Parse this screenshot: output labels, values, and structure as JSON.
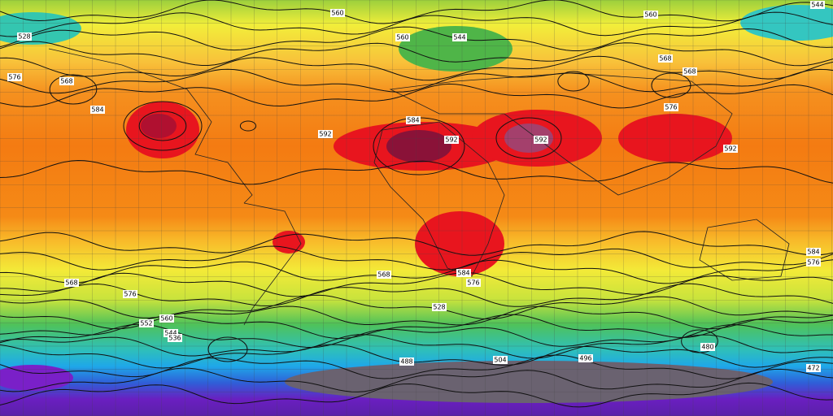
{
  "contour_labels": [
    "544",
    "560",
    "560",
    "528",
    "560",
    "544",
    "568",
    "568",
    "576",
    "568",
    "584",
    "592",
    "584",
    "592",
    "592",
    "576",
    "592",
    "584",
    "576",
    "584",
    "576",
    "568",
    "576",
    "568",
    "560",
    "552",
    "544",
    "536",
    "528",
    "504",
    "496",
    "488",
    "480",
    "472"
  ]
}
